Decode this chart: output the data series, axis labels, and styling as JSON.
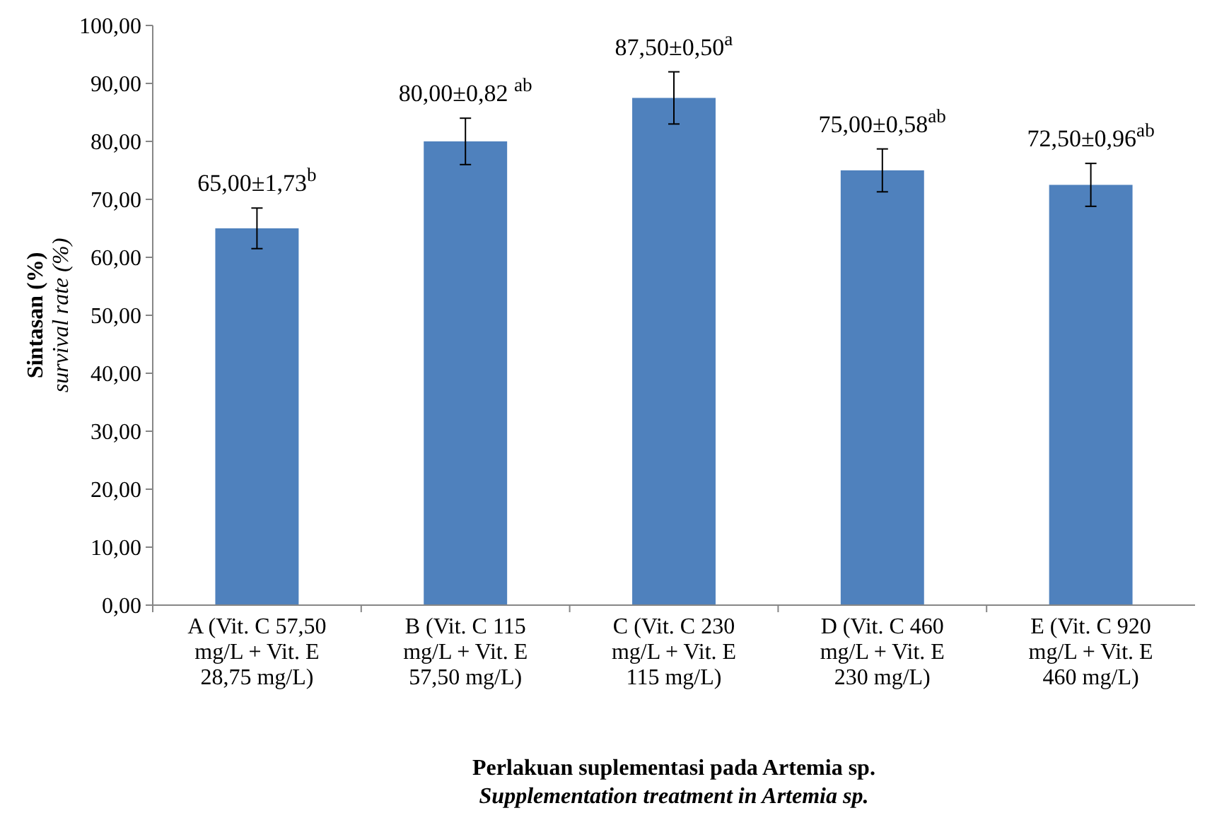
{
  "chart_data": {
    "type": "bar",
    "xlabel": "Perlakuan suplementasi pada Artemia sp.\nSupplementation treatment in Artemia sp.",
    "ylabel": "Sintasan (%)\nsurvival rate (%)",
    "categories": [
      "A (Vit. C 57,50 mg/L + Vit. E 28,75 mg/L)",
      "B (Vit. C 115 mg/L + Vit. E 57,50 mg/L)",
      "C (Vit. C 230 mg/L + Vit. E 115 mg/L)",
      "D (Vit. C 460 mg/L + Vit. E 230 mg/L)",
      "E (Vit. C 920 mg/L + Vit. E 460 mg/L)"
    ],
    "values": [
      65,
      80,
      87.5,
      75,
      72.5
    ],
    "color": "#4f81bd",
    "errors": [
      3.5,
      4,
      4.5,
      3.7,
      3.7
    ],
    "value_labels": [
      "65,00±1,73$^{b}$",
      "80,00±0,82 $^{ab}$",
      "87,50±0,50$^{a}$",
      "75,00±0,58$^{ab}$",
      "72,50±0,96$^{ab}$"
    ],
    "ylim": [
      0,
      100
    ],
    "yticks": [
      {
        "value": 0,
        "label": "0,00"
      },
      {
        "value": 10,
        "label": "10,00"
      },
      {
        "value": 20,
        "label": "20,00"
      },
      {
        "value": 30,
        "label": "30,00"
      },
      {
        "value": 40,
        "label": "40,00"
      },
      {
        "value": 50,
        "label": "50,00"
      },
      {
        "value": 60,
        "label": "60,00"
      },
      {
        "value": 70,
        "label": "70,00"
      },
      {
        "value": 80,
        "label": "80,00"
      },
      {
        "value": 90,
        "label": "90,00"
      },
      {
        "value": 100,
        "label": "100,00"
      }
    ],
    "grid": false
  }
}
